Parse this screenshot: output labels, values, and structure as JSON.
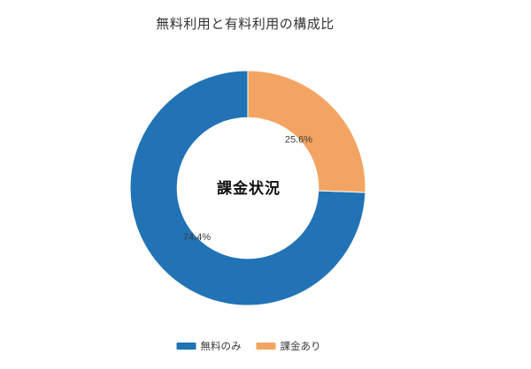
{
  "page": {
    "background_color": "#ffffff"
  },
  "chart_data": {
    "type": "pie",
    "subtype": "donut",
    "title": "無料利用と有料利用の構成比",
    "center_label": "課金状況",
    "categories": [
      "無料のみ",
      "課金あり"
    ],
    "values": [
      74.4,
      25.6
    ],
    "value_unit": "percent",
    "pct_labels": [
      "74.4%",
      "25.6%"
    ],
    "colors": [
      "#2273b5",
      "#f3a462"
    ],
    "start_angle_deg": 90,
    "counterclockwise": true,
    "inner_radius_ratio": 0.6,
    "pct_label_distance_ratio": 0.6,
    "legend_position": "bottom"
  },
  "legend": {
    "items": [
      {
        "label": "無料のみ",
        "color": "#2273b5"
      },
      {
        "label": "課金あり",
        "color": "#f3a462"
      }
    ]
  }
}
